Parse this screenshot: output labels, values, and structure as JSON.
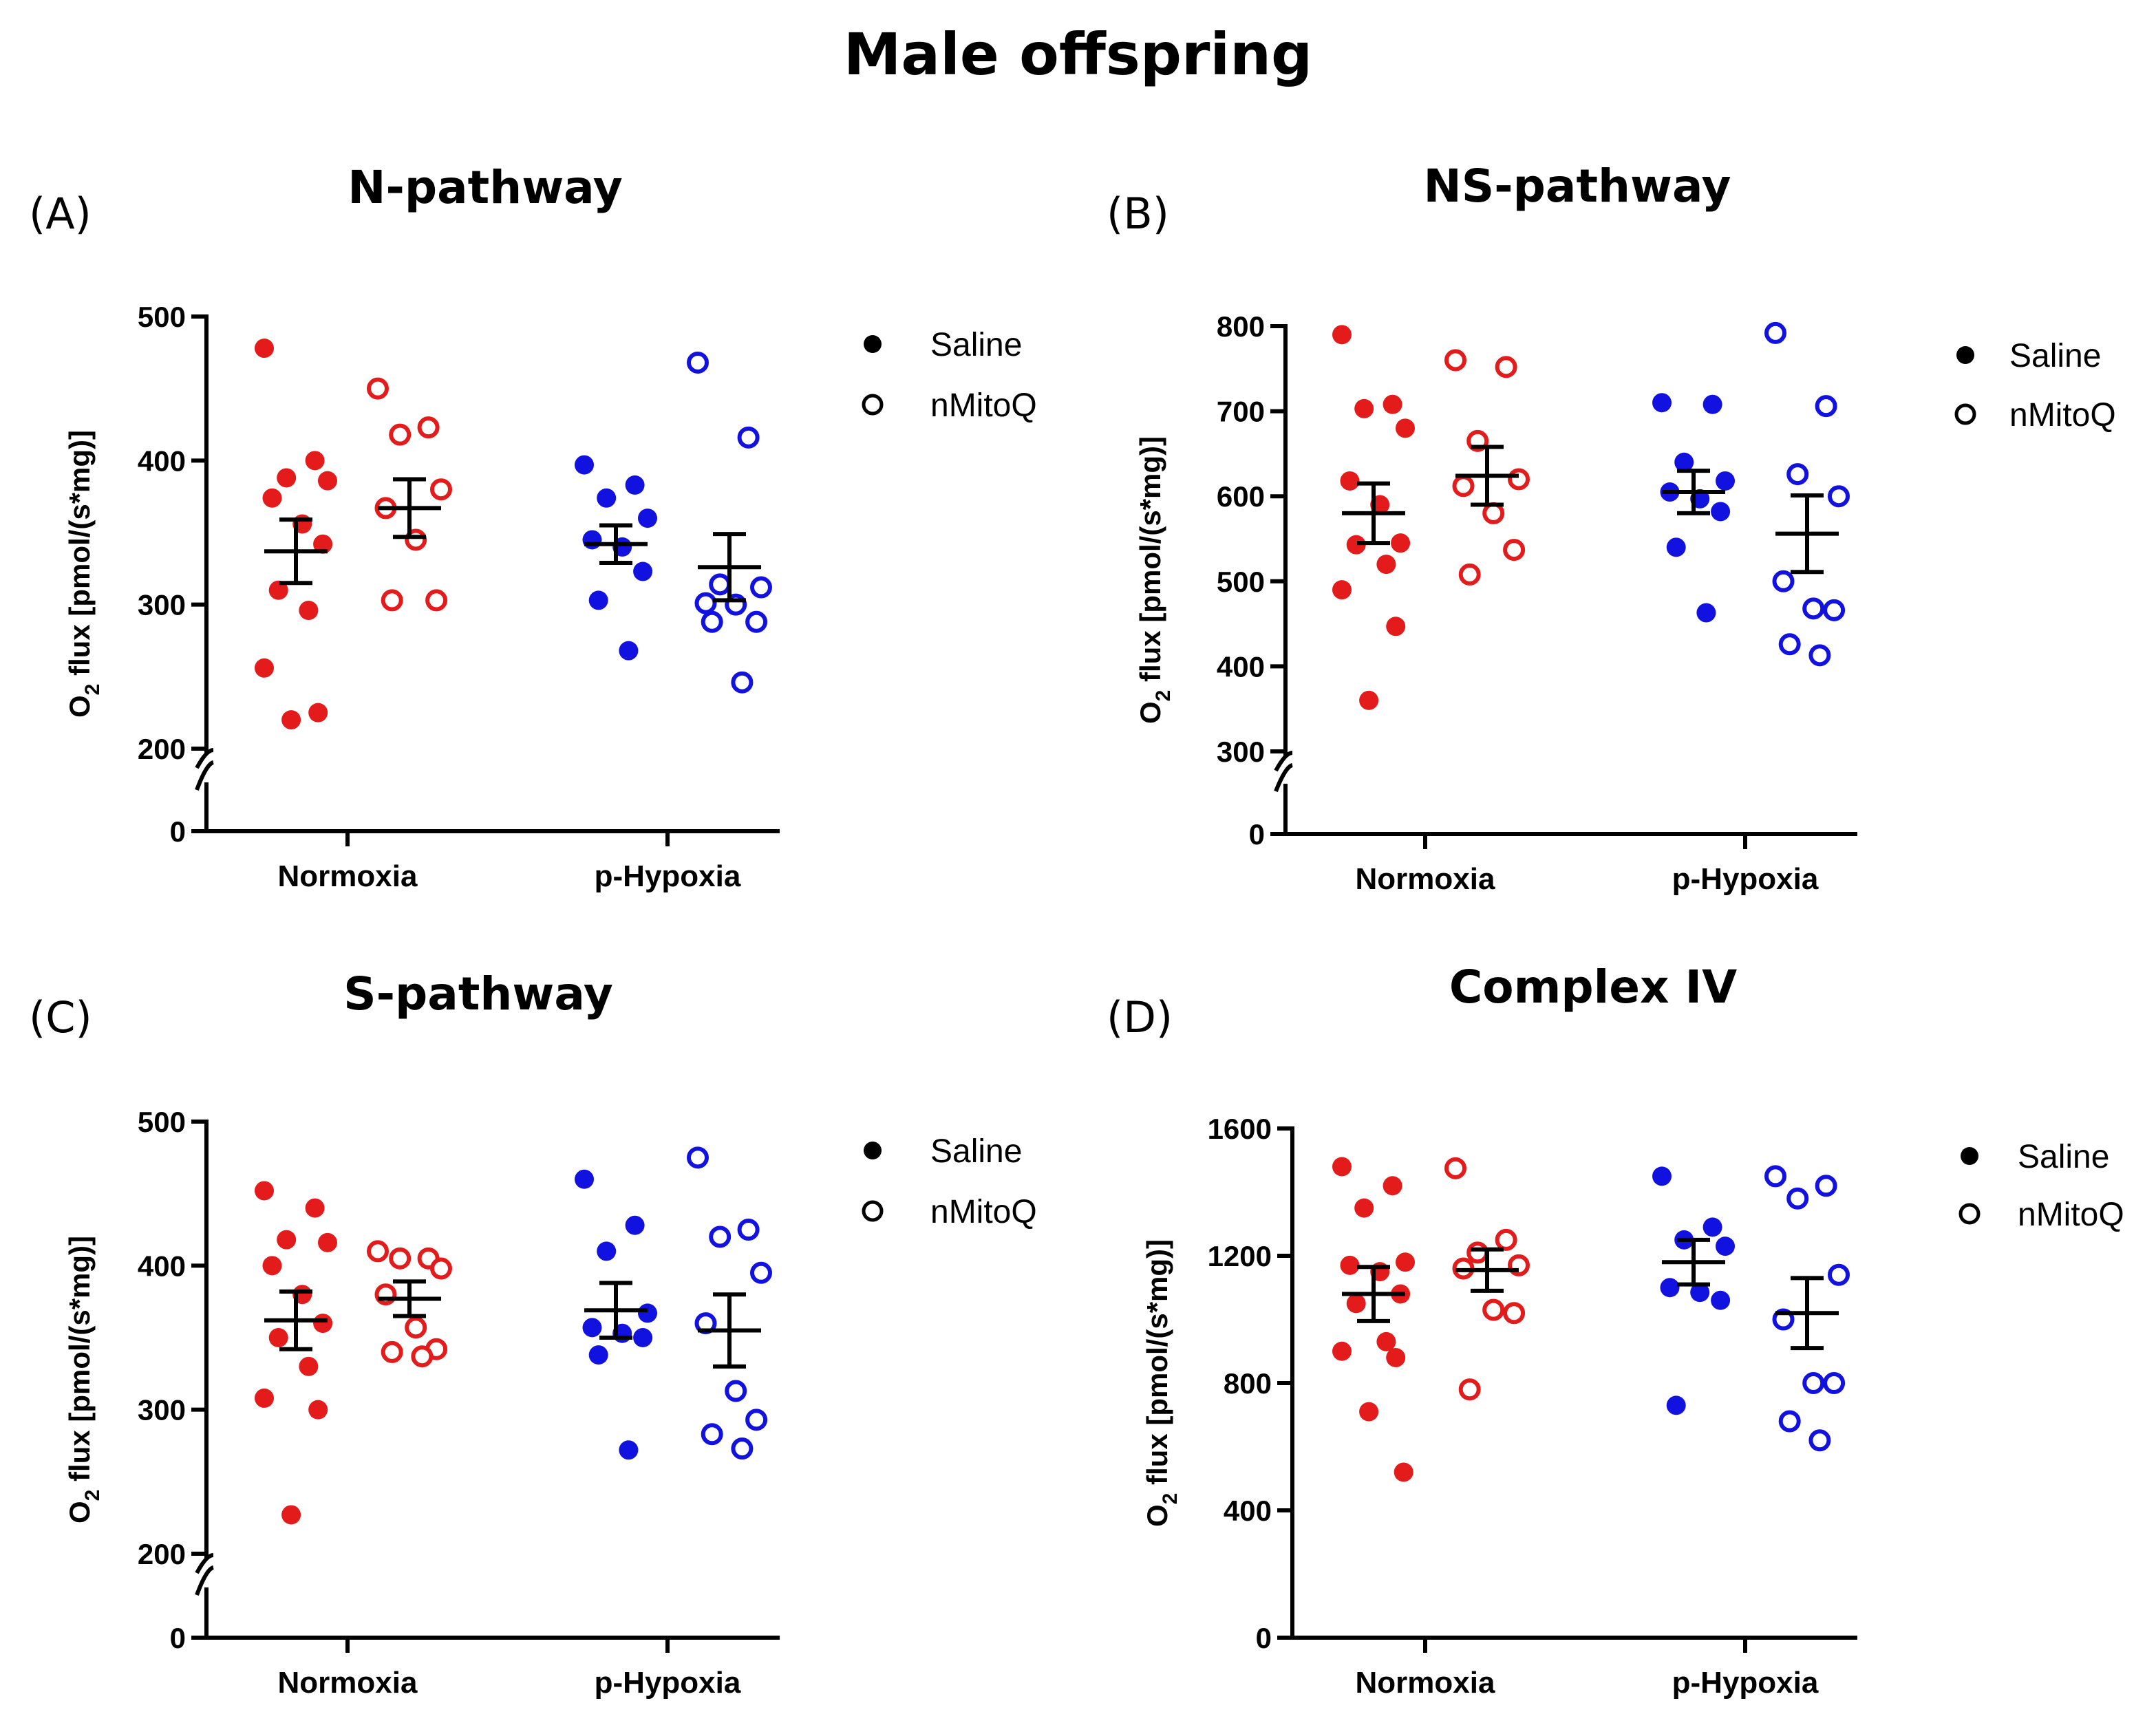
{
  "figure": {
    "title": "Male offspring"
  },
  "colors": {
    "normoxia": "#e31b1b",
    "hypoxia": "#1212e0",
    "axis": "#000000"
  },
  "legend": [
    {
      "label": "Saline",
      "marker": "filled-circle"
    },
    {
      "label": "nMitoQ",
      "marker": "open-circle"
    }
  ],
  "chart_data": [
    {
      "id": "A",
      "letter": "(A)",
      "type": "scatter",
      "title": "N-pathway",
      "ylabel": "O2 flux [pmol/(s*mg)]",
      "ylabel_main": "O",
      "ylabel_sub": "2",
      "ylabel_rest": " flux [pmol/(s*mg)]",
      "categories": [
        "Normoxia",
        "p-Hypoxia"
      ],
      "ylim": [
        200,
        500
      ],
      "yticks": [
        200,
        300,
        400,
        500
      ],
      "zero_tick": "0",
      "axis_break": true,
      "groups": [
        {
          "category": "Normoxia",
          "treatment": "Saline",
          "filled": true,
          "mean": 337,
          "sem": 22,
          "values": [
            478,
            400,
            388,
            386,
            374,
            356,
            342,
            310,
            296,
            256,
            225,
            220
          ]
        },
        {
          "category": "Normoxia",
          "treatment": "nMitoQ",
          "filled": false,
          "mean": 367,
          "sem": 20,
          "values": [
            450,
            423,
            418,
            380,
            367,
            345,
            303,
            303
          ]
        },
        {
          "category": "p-Hypoxia",
          "treatment": "Saline",
          "filled": true,
          "mean": 342,
          "sem": 13,
          "values": [
            397,
            383,
            374,
            360,
            345,
            340,
            323,
            303,
            268
          ]
        },
        {
          "category": "p-Hypoxia",
          "treatment": "nMitoQ",
          "filled": false,
          "mean": 326,
          "sem": 23,
          "values": [
            468,
            416,
            314,
            312,
            301,
            300,
            288,
            288,
            246
          ]
        }
      ]
    },
    {
      "id": "B",
      "letter": "(B)",
      "type": "scatter",
      "title": "NS-pathway",
      "ylabel": "O2 flux [pmol/(s*mg)]",
      "ylabel_main": "O",
      "ylabel_sub": "2",
      "ylabel_rest": " flux [pmol/(s*mg)]",
      "categories": [
        "Normoxia",
        "p-Hypoxia"
      ],
      "ylim": [
        300,
        800
      ],
      "yticks": [
        300,
        400,
        500,
        600,
        700,
        800
      ],
      "zero_tick": "0",
      "axis_break": true,
      "groups": [
        {
          "category": "Normoxia",
          "treatment": "Saline",
          "filled": true,
          "mean": 580,
          "sem": 35,
          "values": [
            790,
            708,
            703,
            680,
            618,
            590,
            545,
            543,
            520,
            490,
            447,
            360
          ]
        },
        {
          "category": "Normoxia",
          "treatment": "nMitoQ",
          "filled": false,
          "mean": 624,
          "sem": 34,
          "values": [
            760,
            752,
            665,
            620,
            612,
            580,
            537,
            508
          ]
        },
        {
          "category": "p-Hypoxia",
          "treatment": "Saline",
          "filled": true,
          "mean": 605,
          "sem": 25,
          "values": [
            710,
            708,
            640,
            618,
            605,
            597,
            582,
            540,
            463
          ]
        },
        {
          "category": "p-Hypoxia",
          "treatment": "nMitoQ",
          "filled": false,
          "mean": 556,
          "sem": 45,
          "values": [
            792,
            706,
            626,
            600,
            500,
            468,
            466,
            426,
            413
          ]
        }
      ]
    },
    {
      "id": "C",
      "letter": "(C)",
      "type": "scatter",
      "title": "S-pathway",
      "ylabel": "O2 flux [pmol/(s*mg)]",
      "ylabel_main": "O",
      "ylabel_sub": "2",
      "ylabel_rest": " flux [pmol/(s*mg)]",
      "categories": [
        "Normoxia",
        "p-Hypoxia"
      ],
      "ylim": [
        200,
        500
      ],
      "yticks": [
        200,
        300,
        400,
        500
      ],
      "zero_tick": "0",
      "axis_break": true,
      "groups": [
        {
          "category": "Normoxia",
          "treatment": "Saline",
          "filled": true,
          "mean": 362,
          "sem": 20,
          "values": [
            452,
            440,
            418,
            416,
            400,
            380,
            360,
            350,
            330,
            308,
            300,
            227
          ]
        },
        {
          "category": "Normoxia",
          "treatment": "nMitoQ",
          "filled": false,
          "mean": 377,
          "sem": 12,
          "values": [
            410,
            405,
            405,
            398,
            380,
            357,
            342,
            340,
            337
          ]
        },
        {
          "category": "p-Hypoxia",
          "treatment": "Saline",
          "filled": true,
          "mean": 369,
          "sem": 19,
          "values": [
            460,
            428,
            410,
            367,
            357,
            353,
            350,
            338,
            272
          ]
        },
        {
          "category": "p-Hypoxia",
          "treatment": "nMitoQ",
          "filled": false,
          "mean": 355,
          "sem": 25,
          "values": [
            475,
            425,
            420,
            395,
            360,
            313,
            293,
            283,
            273
          ]
        }
      ]
    },
    {
      "id": "D",
      "letter": "(D)",
      "type": "scatter",
      "title": "Complex IV",
      "ylabel": "O2 flux [pmol/(s*mg)]",
      "ylabel_main": "O",
      "ylabel_sub": "2",
      "ylabel_rest": " flux [pmol/(s*mg)]",
      "categories": [
        "Normoxia",
        "p-Hypoxia"
      ],
      "ylim": [
        0,
        1600
      ],
      "yticks": [
        0,
        400,
        800,
        1200,
        1600
      ],
      "zero_tick": null,
      "axis_break": false,
      "groups": [
        {
          "category": "Normoxia",
          "treatment": "Saline",
          "filled": true,
          "mean": 1080,
          "sem": 85,
          "values": [
            1480,
            1420,
            1350,
            1180,
            1170,
            1150,
            1080,
            1050,
            930,
            900,
            880,
            710,
            520
          ]
        },
        {
          "category": "Normoxia",
          "treatment": "nMitoQ",
          "filled": false,
          "mean": 1155,
          "sem": 65,
          "values": [
            1475,
            1250,
            1210,
            1170,
            1160,
            1030,
            1020,
            780
          ]
        },
        {
          "category": "p-Hypoxia",
          "treatment": "Saline",
          "filled": true,
          "mean": 1180,
          "sem": 70,
          "values": [
            1450,
            1290,
            1250,
            1230,
            1100,
            1085,
            1060,
            730
          ]
        },
        {
          "category": "p-Hypoxia",
          "treatment": "nMitoQ",
          "filled": false,
          "mean": 1020,
          "sem": 110,
          "values": [
            1450,
            1420,
            1380,
            1140,
            1000,
            800,
            800,
            680,
            620
          ]
        }
      ]
    }
  ]
}
